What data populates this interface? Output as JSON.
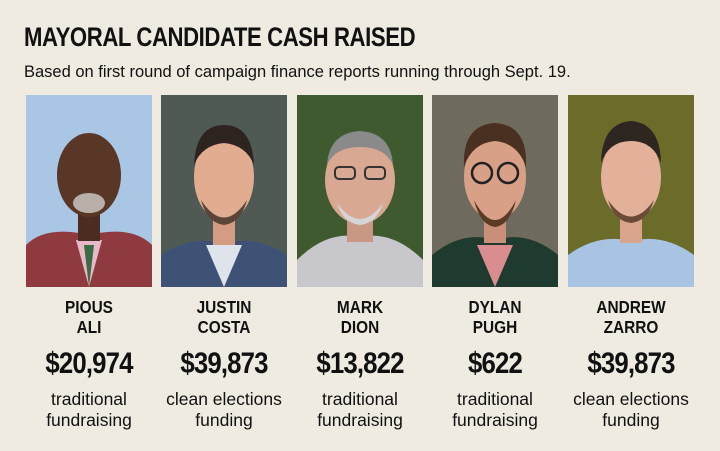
{
  "header": {
    "title": "MAYORAL CANDIDATE CASH RAISED",
    "subtitle": "Based on first round of campaign finance reports running through Sept. 19."
  },
  "candidates": [
    {
      "first": "PIOUS",
      "last": "ALI",
      "amount": "$20,974",
      "method_line1": "traditional",
      "method_line2": "fundraising"
    },
    {
      "first": "JUSTIN",
      "last": "COSTA",
      "amount": "$39,873",
      "method_line1": "clean elections",
      "method_line2": "funding"
    },
    {
      "first": "MARK",
      "last": "DION",
      "amount": "$13,822",
      "method_line1": "traditional",
      "method_line2": "fundraising"
    },
    {
      "first": "DYLAN",
      "last": "PUGH",
      "amount": "$622",
      "method_line1": "traditional",
      "method_line2": "fundraising"
    },
    {
      "first": "ANDREW",
      "last": "ZARRO",
      "amount": "$39,873",
      "method_line1": "clean elections",
      "method_line2": "funding"
    }
  ]
}
